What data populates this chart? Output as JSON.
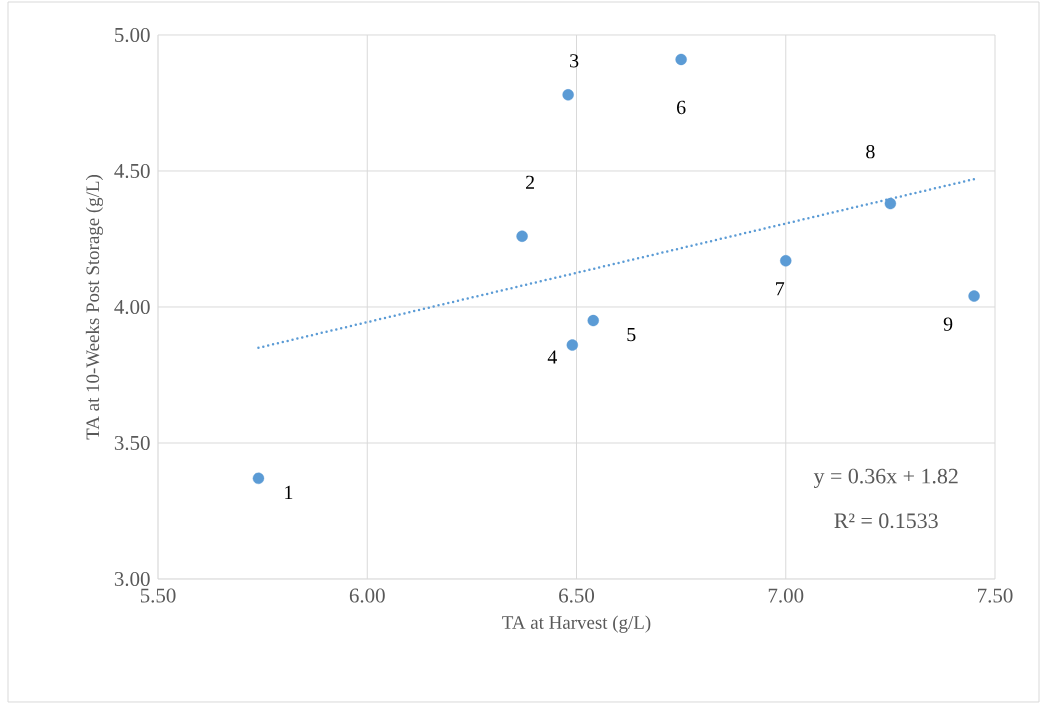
{
  "chart_data": {
    "type": "scatter",
    "xlabel": "TA at Harvest (g/L)",
    "ylabel": "TA at 10-Weeks Post Storage (g/L)",
    "xlim": [
      5.5,
      7.5
    ],
    "xticks": [
      {
        "value": 5.5,
        "label": "5.50"
      },
      {
        "value": 6.0,
        "label": "6.00"
      },
      {
        "value": 6.5,
        "label": "6.50"
      },
      {
        "value": 7.0,
        "label": "7.00"
      },
      {
        "value": 7.5,
        "label": "7.50"
      }
    ],
    "ylim": [
      3.0,
      5.0
    ],
    "yticks": [
      {
        "value": 3.0,
        "label": "3.00"
      },
      {
        "value": 3.5,
        "label": "3.50"
      },
      {
        "value": 4.0,
        "label": "4.00"
      },
      {
        "value": 4.5,
        "label": "4.50"
      },
      {
        "value": 5.0,
        "label": "5.00"
      }
    ],
    "grid": true,
    "series": [
      {
        "marker": "circle",
        "color": "#5b9bd5",
        "x": [
          5.74,
          6.37,
          6.48,
          6.49,
          6.54,
          6.75,
          7.0,
          7.25,
          7.45
        ],
        "values": [
          3.37,
          4.26,
          4.78,
          3.86,
          3.95,
          4.91,
          4.17,
          4.38,
          4.04
        ]
      },
      {
        "type": "line",
        "line_style": "dotted",
        "marker": "none",
        "color": "#5b9bd5",
        "x": [
          5.74,
          7.45
        ],
        "values": [
          3.85,
          4.47
        ]
      }
    ],
    "annotations": [
      {
        "text": "1",
        "x": 5.74,
        "y": 3.37
      },
      {
        "text": "2",
        "x": 6.37,
        "y": 4.26
      },
      {
        "text": "3",
        "x": 6.48,
        "y": 4.78
      },
      {
        "text": "4",
        "x": 6.49,
        "y": 3.86
      },
      {
        "text": "5",
        "x": 6.54,
        "y": 3.95
      },
      {
        "text": "6",
        "x": 6.75,
        "y": 4.91
      },
      {
        "text": "7",
        "x": 7.0,
        "y": 4.17
      },
      {
        "text": "8",
        "x": 7.25,
        "y": 4.38
      },
      {
        "text": "9",
        "x": 7.45,
        "y": 4.04
      },
      "y = 0.36x + 1.82",
      "R² = 0.1533"
    ]
  }
}
